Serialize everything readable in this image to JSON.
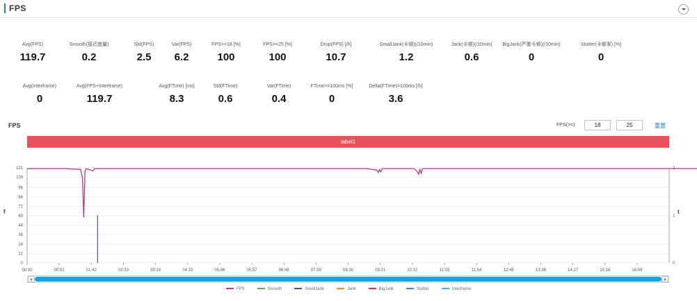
{
  "header": {
    "title": "FPS",
    "collapse_icon": "chevron-down-icon"
  },
  "metrics_row1": [
    {
      "label": "Avg(FPS)",
      "value": "119.7"
    },
    {
      "label": "Smooth(接近度量)",
      "value": "0.2"
    },
    {
      "label": "Std(FPS)",
      "value": "2.5"
    },
    {
      "label": "Var(FPS)",
      "value": "6.2"
    },
    {
      "label": "FPS>=18 [%]",
      "value": "100"
    },
    {
      "label": "FPS>=25 [%]",
      "value": "100"
    },
    {
      "label": "Drop(FPS) [/h]",
      "value": "10.7"
    },
    {
      "label": "SmallJank(卡顿)(/10min)",
      "value": "1.2"
    },
    {
      "label": "Jank(卡顿)(/10min)",
      "value": "0.6"
    },
    {
      "label": "BigJank(严重卡顿)(/10min)",
      "value": "0"
    },
    {
      "label": "Stutter(卡顿率) [%]",
      "value": "0"
    }
  ],
  "metrics_row2": [
    {
      "label": "Avg(Interframe)",
      "value": "0"
    },
    {
      "label": "Avg(FPS+Interframe)",
      "value": "119.7"
    },
    {
      "label": "Avg(FTime) [ms]",
      "value": "8.3"
    },
    {
      "label": "Std(FTime)",
      "value": "0.6"
    },
    {
      "label": "Var(FTime)",
      "value": "0.4"
    },
    {
      "label": "FTime>=100ms [%]",
      "value": "0"
    },
    {
      "label": "Delta(FTime)>100ms [/h]",
      "value": "3.6"
    }
  ],
  "chart_header": {
    "title": "FPS",
    "fps_filter_label": "FPS(>=)",
    "fps_threshold_1": "18",
    "fps_threshold_2": "25",
    "reset_label": "重置"
  },
  "label_bar": {
    "text": "label1",
    "color": "#e9505a"
  },
  "colors": {
    "fps": "#b8378f",
    "smooth": "#5aa46b",
    "small_jank": "#4b4fb0",
    "jank": "#e98a3a",
    "big_jank": "#d6333a",
    "stutter": "#3a7fc9",
    "interframe": "#38b7d8"
  },
  "chart_data": {
    "type": "line",
    "title": "FPS",
    "xlabel": "",
    "ylabel_left": "f",
    "ylabel_right": "t",
    "y_ticks_left": [
      "0",
      "12",
      "24",
      "36",
      "48",
      "60",
      "72",
      "84",
      "96",
      "109",
      "121"
    ],
    "y_ticks_right": [
      "0",
      "1",
      "2"
    ],
    "ylim": [
      0,
      121
    ],
    "ylim_right": [
      0,
      2
    ],
    "x_ticks": [
      "00:00",
      "00:51",
      "01:42",
      "02:33",
      "03:24",
      "04:15",
      "05:06",
      "05:57",
      "06:48",
      "07:39",
      "08:30",
      "09:21",
      "10:12",
      "11:03",
      "11:54",
      "12:45",
      "13:36",
      "14:27",
      "15:18",
      "16:09"
    ],
    "grid": true,
    "legend_position": "bottom",
    "series": [
      {
        "name": "FPS",
        "color": "#b8378f",
        "points": [
          [
            0,
            120
          ],
          [
            60,
            120
          ],
          [
            85,
            119
          ],
          [
            88,
            108
          ],
          [
            90,
            58
          ],
          [
            92,
            117
          ],
          [
            94,
            120
          ],
          [
            105,
            117
          ],
          [
            107,
            120
          ],
          [
            240,
            120
          ],
          [
            540,
            120
          ],
          [
            556,
            118
          ],
          [
            558,
            115
          ],
          [
            560,
            119
          ],
          [
            562,
            116
          ],
          [
            564,
            120
          ],
          [
            570,
            120
          ],
          [
            615,
            120
          ],
          [
            620,
            116
          ],
          [
            622,
            113
          ],
          [
            624,
            119
          ],
          [
            626,
            114
          ],
          [
            628,
            120
          ],
          [
            635,
            120
          ],
          [
            1080,
            120
          ],
          [
            1089,
            119
          ],
          [
            1091,
            103
          ],
          [
            1093,
            119
          ],
          [
            1095,
            120
          ]
        ]
      },
      {
        "name": "Smooth",
        "color": "#5aa46b",
        "points": []
      },
      {
        "name": "SmallJank",
        "color": "#4b4fb0",
        "points": [
          [
            112,
            0
          ],
          [
            112,
            1
          ]
        ]
      },
      {
        "name": "Jank",
        "color": "#e98a3a",
        "points": []
      },
      {
        "name": "BigJank",
        "color": "#d6333a",
        "points": [
          [
            1091,
            0
          ],
          [
            1091,
            0.88
          ]
        ]
      },
      {
        "name": "Stutter",
        "color": "#3a7fc9",
        "points": []
      },
      {
        "name": "Interframe",
        "color": "#38b7d8",
        "points": []
      }
    ]
  }
}
